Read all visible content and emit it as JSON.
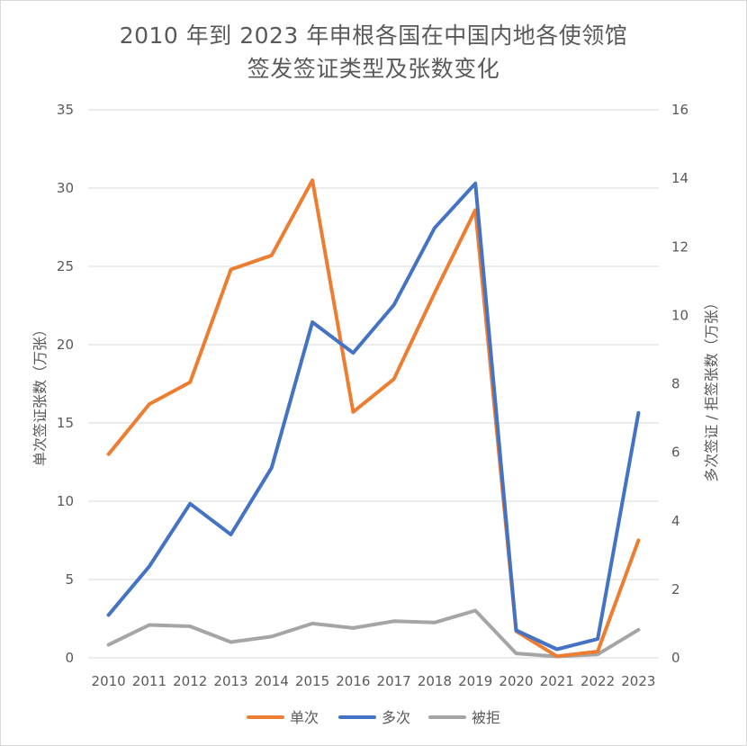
{
  "chart_data": {
    "type": "line",
    "title": [
      "2010 年到 2023 年申根各国在中国内地各使领馆",
      "签发签证类型及张数变化"
    ],
    "ylabel_left": "单次签证张数（万张）",
    "ylabel_right": "多次签证 / 拒签张数（万张）",
    "ylim_left": [
      0,
      35
    ],
    "ylim_right": [
      0,
      16
    ],
    "yticks_left": [
      0,
      5,
      10,
      15,
      20,
      25,
      30,
      35
    ],
    "yticks_right": [
      0,
      2,
      4,
      6,
      8,
      10,
      12,
      14,
      16
    ],
    "categories": [
      "2010",
      "2011",
      "2012",
      "2013",
      "2014",
      "2015",
      "2016",
      "2017",
      "2018",
      "2019",
      "2020",
      "2021",
      "2022",
      "2023"
    ],
    "grid": true,
    "legend_position": "bottom",
    "series": [
      {
        "name": "单次",
        "axis": "left",
        "color": "#ED7D31",
        "values": [
          13.0,
          16.2,
          17.6,
          24.8,
          25.7,
          30.5,
          15.7,
          17.8,
          23.3,
          28.6,
          1.7,
          0.1,
          0.4,
          7.5
        ]
      },
      {
        "name": "多次",
        "axis": "right",
        "color": "#4472C4",
        "values": [
          1.25,
          2.67,
          4.5,
          3.6,
          5.55,
          9.8,
          8.9,
          10.3,
          12.55,
          13.85,
          0.8,
          0.25,
          0.55,
          7.15
        ]
      },
      {
        "name": "被拒",
        "axis": "right",
        "color": "#A5A5A5",
        "values": [
          0.38,
          0.96,
          0.92,
          0.46,
          0.62,
          1.0,
          0.87,
          1.07,
          1.03,
          1.38,
          0.13,
          0.04,
          0.1,
          0.82
        ]
      }
    ]
  }
}
